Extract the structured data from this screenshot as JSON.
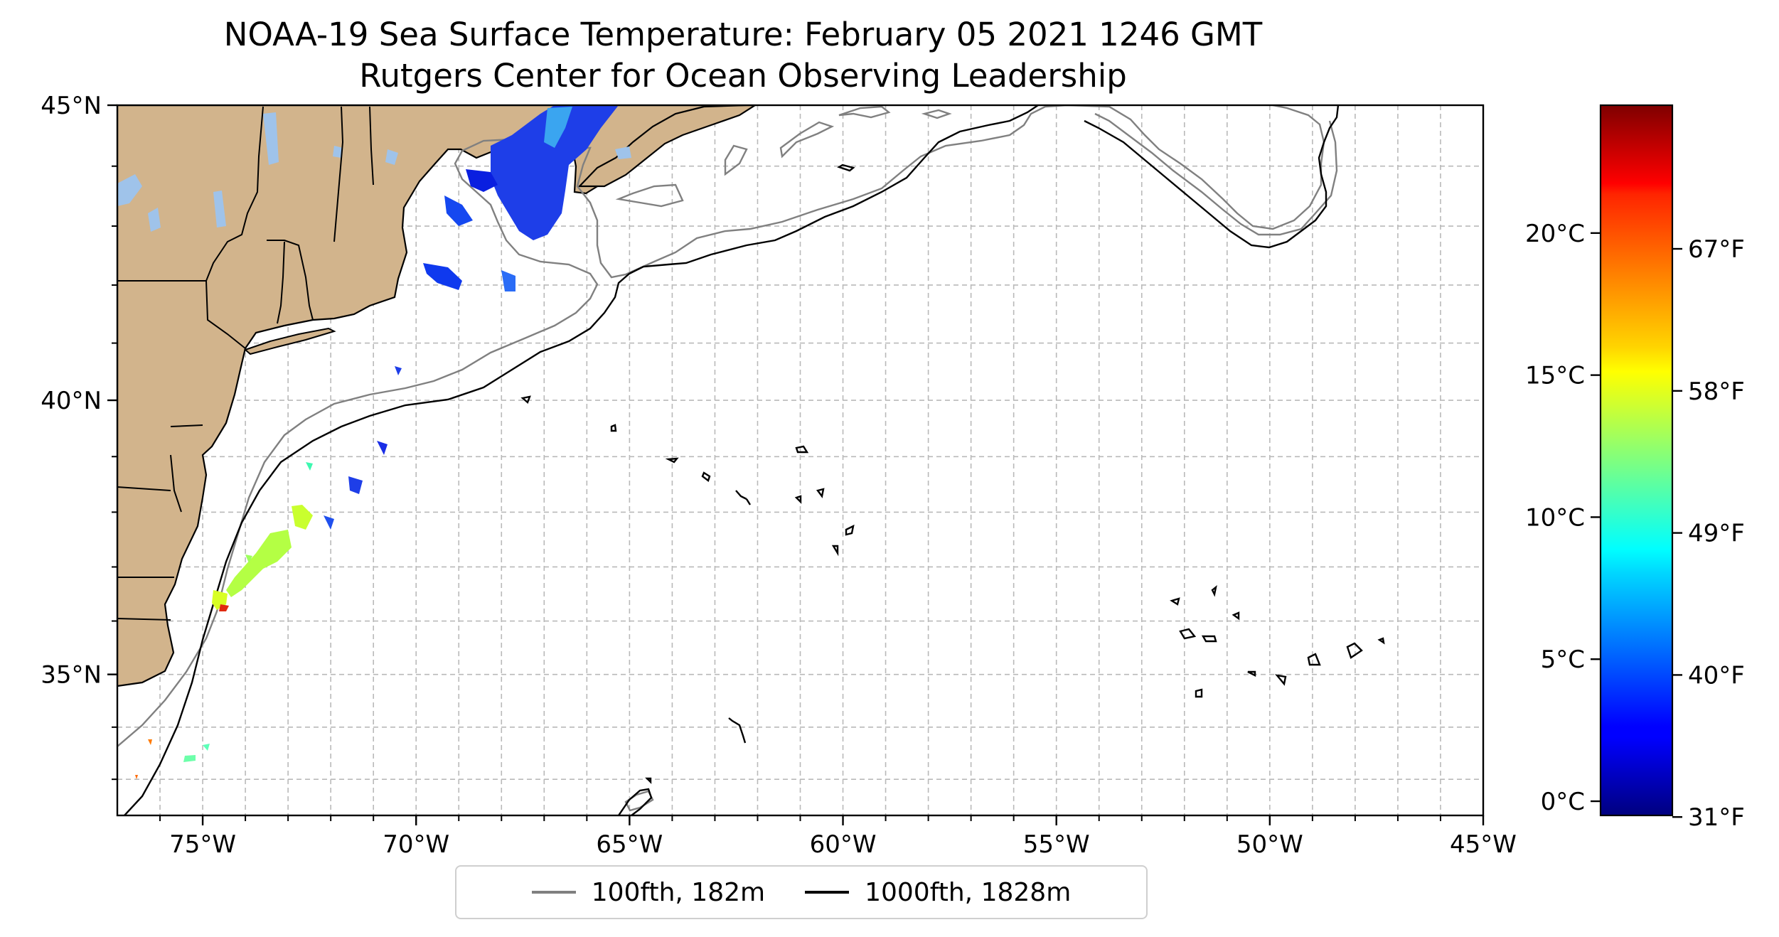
{
  "title": "NOAA-19 Sea Surface Temperature: February 05 2021 1246 GMT",
  "subtitle": "Rutgers Center for Ocean Observing Leadership",
  "map": {
    "extent": {
      "lon": [
        -77,
        -45
      ],
      "lat": [
        32.3,
        45
      ]
    },
    "lat_ticks": [
      {
        "value": 45,
        "label": "45°N"
      },
      {
        "value": 40,
        "label": "40°N"
      },
      {
        "value": 35,
        "label": "35°N"
      }
    ],
    "lon_ticks": [
      {
        "value": -75,
        "label": "75°W"
      },
      {
        "value": -70,
        "label": "70°W"
      },
      {
        "value": -65,
        "label": "65°W"
      },
      {
        "value": -60,
        "label": "60°W"
      },
      {
        "value": -55,
        "label": "55°W"
      },
      {
        "value": -50,
        "label": "50°W"
      },
      {
        "value": -45,
        "label": "45°W"
      }
    ],
    "gridlines": true,
    "land_color": "#d2b48c",
    "lake_color": "#9fc3ea"
  },
  "colorbar": {
    "colormap": "jet",
    "range_c": [
      -0.5,
      24.5
    ],
    "celsius_ticks": [
      {
        "value": 0,
        "label": "0°C"
      },
      {
        "value": 5,
        "label": "5°C"
      },
      {
        "value": 10,
        "label": "10°C"
      },
      {
        "value": 15,
        "label": "15°C"
      },
      {
        "value": 20,
        "label": "20°C"
      }
    ],
    "fahrenheit_ticks": [
      {
        "value": 31,
        "label": "31°F"
      },
      {
        "value": 40,
        "label": "40°F"
      },
      {
        "value": 49,
        "label": "49°F"
      },
      {
        "value": 58,
        "label": "58°F"
      },
      {
        "value": 67,
        "label": "67°F"
      }
    ]
  },
  "legend": {
    "placement": "bottom-center",
    "items": [
      {
        "label": "100fth, 182m",
        "color": "#808080"
      },
      {
        "label": "1000fth, 1828m",
        "color": "#000000"
      }
    ]
  }
}
